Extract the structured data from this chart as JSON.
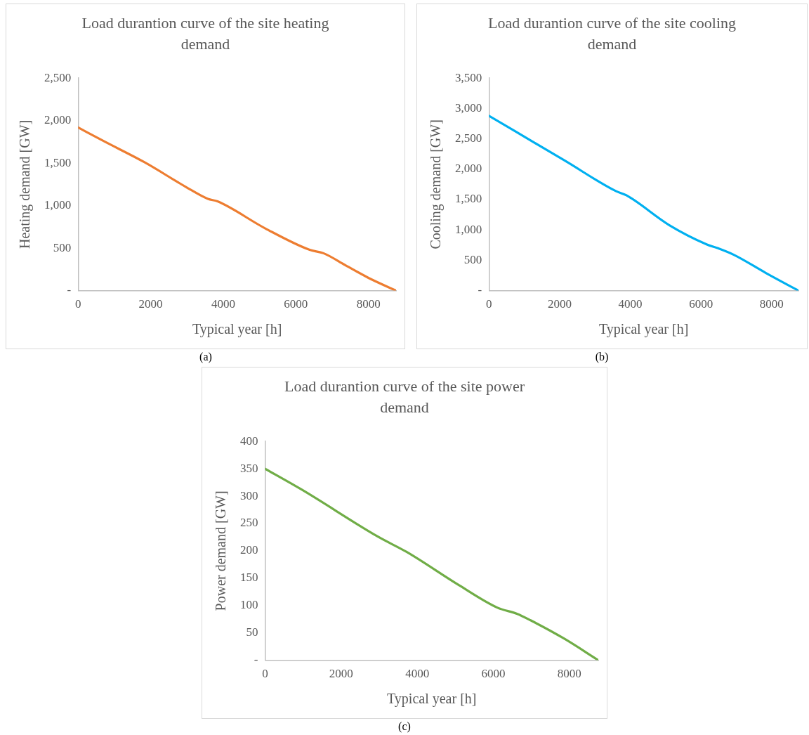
{
  "chart_data": [
    {
      "type": "line",
      "title": "Load durantion curve of the site heating demand",
      "xlabel": "Typical year [h]",
      "ylabel": "Heating demand [GW]",
      "annotations": [
        "(a)"
      ],
      "x": [
        0,
        700,
        1830,
        2970,
        3575,
        3840,
        5165,
        6380,
        6760,
        7360,
        8000,
        8760
      ],
      "series": [
        {
          "color": "#ed7d31",
          "values": [
            1920,
            1760,
            1510,
            1220,
            1080,
            1050,
            730,
            480,
            440,
            300,
            150,
            0
          ]
        }
      ],
      "xlim": [
        0,
        8760
      ],
      "xticks": [
        0,
        2000,
        4000,
        6000,
        8000
      ],
      "ylim": [
        0,
        2500
      ],
      "yticks": [
        {
          "value": 0,
          "label": "-"
        },
        {
          "value": 500,
          "label": "500"
        },
        {
          "value": 1000,
          "label": "1,000"
        },
        {
          "value": 1500,
          "label": "1,500"
        },
        {
          "value": 2000,
          "label": "2,000"
        },
        {
          "value": 2500,
          "label": "2,500"
        }
      ]
    },
    {
      "type": "line",
      "title": "Load durantion curve of the site cooling demand",
      "xlabel": "Typical year [h]",
      "ylabel": "Cooling demand [GW]",
      "annotations": [
        "(b)"
      ],
      "x": [
        0,
        2150,
        3590,
        3890,
        5100,
        6170,
        6470,
        6930,
        7840,
        8760
      ],
      "series": [
        {
          "color": "#00b0f0",
          "values": [
            2880,
            2140,
            1640,
            1570,
            1080,
            760,
            700,
            590,
            290,
            0
          ]
        }
      ],
      "xlim": [
        0,
        8760
      ],
      "xticks": [
        0,
        2000,
        4000,
        6000,
        8000
      ],
      "ylim": [
        0,
        3500
      ],
      "yticks": [
        {
          "value": 0,
          "label": "-"
        },
        {
          "value": 500,
          "label": "500"
        },
        {
          "value": 1000,
          "label": "1,000"
        },
        {
          "value": 1500,
          "label": "1,500"
        },
        {
          "value": 2000,
          "label": "2,000"
        },
        {
          "value": 2500,
          "label": "2,500"
        },
        {
          "value": 3000,
          "label": "3,000"
        },
        {
          "value": 3500,
          "label": "3,500"
        }
      ]
    },
    {
      "type": "line",
      "title": "Load durantion curve of the site power demand",
      "xlabel": "Typical year [h]",
      "ylabel": "Power demand [GW]",
      "annotations": [
        "(c)"
      ],
      "x": [
        0,
        960,
        2990,
        3720,
        5100,
        6110,
        6620,
        6980,
        7850,
        8760
      ],
      "series": [
        {
          "color": "#70ad47",
          "values": [
            350,
            312,
            225,
            198,
            137,
            96,
            85,
            73,
            40,
            0
          ]
        }
      ],
      "xlim": [
        0,
        8760
      ],
      "xticks": [
        0,
        2000,
        4000,
        6000,
        8000
      ],
      "ylim": [
        0,
        400
      ],
      "yticks": [
        {
          "value": 0,
          "label": "-"
        },
        50,
        100,
        150,
        200,
        250,
        300,
        350,
        400
      ]
    }
  ]
}
